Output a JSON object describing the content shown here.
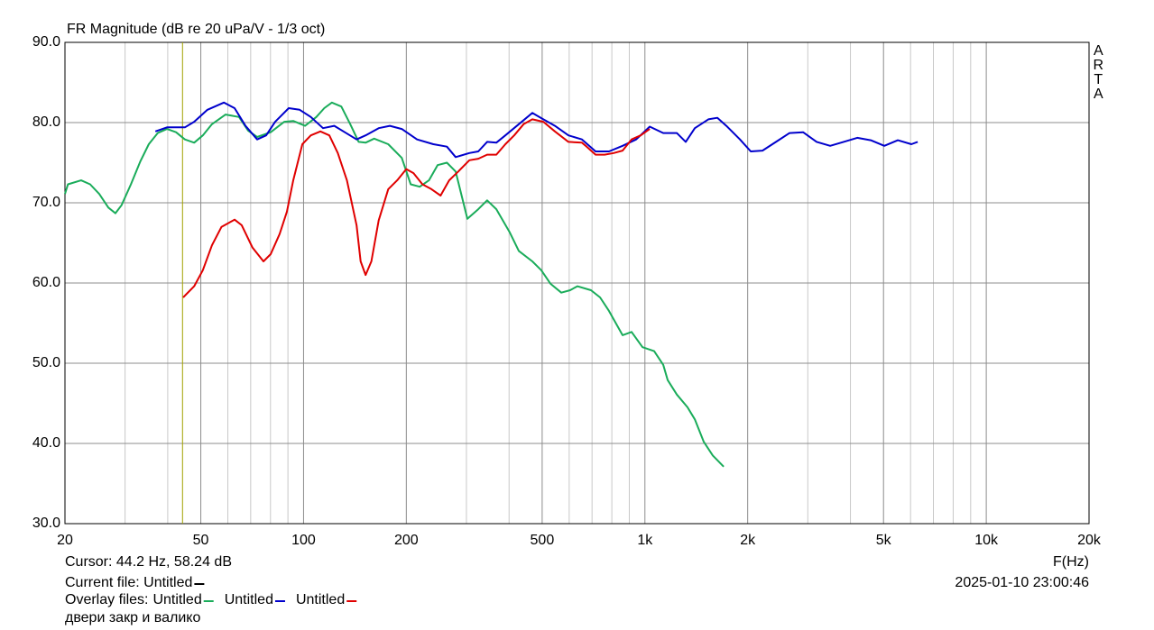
{
  "chart_data": {
    "type": "line",
    "title": "FR Magnitude (dB re 20 uPa/V - 1/3 oct)",
    "watermark": "ARTA",
    "x_label": "F(Hz)",
    "log_x": true,
    "grid": true,
    "xlim": [
      20,
      20000
    ],
    "ylim": [
      30,
      90
    ],
    "xticks": [
      20,
      50,
      100,
      200,
      500,
      {
        "value": 1000,
        "label": "1k"
      },
      {
        "value": 2000,
        "label": "2k"
      },
      {
        "value": 5000,
        "label": "5k"
      },
      {
        "value": 10000,
        "label": "10k"
      },
      {
        "value": 20000,
        "label": "20k"
      }
    ],
    "xminor": [
      30,
      40,
      60,
      70,
      80,
      90,
      300,
      400,
      600,
      700,
      800,
      900,
      3000,
      4000,
      6000,
      7000,
      8000,
      9000
    ],
    "yticks": [
      {
        "value": 30,
        "label": "30.0"
      },
      {
        "value": 40,
        "label": "40.0"
      },
      {
        "value": 50,
        "label": "50.0"
      },
      {
        "value": 60,
        "label": "60.0"
      },
      {
        "value": 70,
        "label": "70.0"
      },
      {
        "value": 80,
        "label": "80.0"
      },
      {
        "value": 90,
        "label": "90.0"
      }
    ],
    "cursor_x": 44.2,
    "cursor_color": "#a0a000",
    "cursor_text": "Cursor: 44.2 Hz, 58.24 dB",
    "current_file": "Current file: Untitled",
    "current_file_color": "#000000",
    "overlay_label": "Overlay files:",
    "date": "2025-01-10  23:00:46",
    "comment": "двери закр  и валико",
    "series": [
      {
        "name": "Untitled",
        "color": "#1aac5a",
        "x": [
          20,
          20.4,
          22.3,
          23.7,
          25.2,
          26.8,
          28.1,
          29.3,
          31.2,
          33.2,
          35.2,
          37.4,
          39.8,
          42.3,
          44.9,
          47.8,
          50.7,
          53.9,
          59.1,
          64.7,
          68.8,
          73.1,
          80.1,
          87.8,
          93.3,
          101,
          109,
          115,
          121,
          129,
          137,
          145,
          152,
          161,
          177,
          194,
          206,
          219,
          233,
          247,
          263,
          279,
          302,
          325,
          345,
          367,
          402,
          427,
          468,
          497,
          529,
          569,
          604,
          634,
          695,
          739,
          785,
          860,
          914,
          984,
          1064,
          1132,
          1166,
          1240,
          1333,
          1400,
          1487,
          1581,
          1701
        ],
        "values": [
          71.1,
          72.3,
          72.8,
          72.3,
          71.1,
          69.4,
          68.7,
          69.7,
          72.3,
          75.1,
          77.3,
          78.7,
          79.2,
          78.8,
          77.9,
          77.5,
          78.4,
          79.8,
          81.0,
          80.7,
          79.0,
          78.2,
          78.8,
          80.1,
          80.2,
          79.6,
          80.7,
          81.8,
          82.5,
          82.0,
          79.8,
          77.6,
          77.5,
          78.0,
          77.3,
          75.6,
          72.3,
          72.0,
          72.8,
          74.7,
          75.0,
          73.9,
          68.0,
          69.2,
          70.3,
          69.2,
          66.3,
          64.0,
          62.7,
          61.6,
          59.9,
          58.8,
          59.1,
          59.6,
          59.1,
          58.2,
          56.5,
          53.5,
          53.9,
          52.0,
          51.5,
          49.8,
          47.9,
          46.1,
          44.5,
          43.0,
          40.2,
          38.5,
          37.1
        ]
      },
      {
        "name": "Untitled",
        "color": "#0000cc",
        "x": [
          36.8,
          39.8,
          44.9,
          47.8,
          52.3,
          58.4,
          62.8,
          67.6,
          73.1,
          77.7,
          82.6,
          90.5,
          97.4,
          105,
          114,
          123,
          132,
          143,
          152,
          166,
          179,
          194,
          215,
          240,
          263,
          279,
          306,
          325,
          345,
          367,
          390,
          427,
          468,
          504,
          545,
          597,
          654,
          717,
          785,
          860,
          943,
          1033,
          1132,
          1240,
          1317,
          1400,
          1534,
          1630,
          1732,
          1898,
          2042,
          2210,
          2421,
          2653,
          2906,
          3184,
          3488,
          3821,
          4187,
          4587,
          5026,
          5507,
          6034,
          6296
        ],
        "values": [
          78.9,
          79.4,
          79.4,
          80.1,
          81.6,
          82.5,
          81.8,
          79.6,
          77.9,
          78.4,
          80.1,
          81.8,
          81.6,
          80.7,
          79.3,
          79.6,
          78.8,
          77.9,
          78.4,
          79.3,
          79.6,
          79.2,
          77.9,
          77.3,
          77.0,
          75.7,
          76.2,
          76.4,
          77.6,
          77.5,
          78.4,
          79.8,
          81.2,
          80.4,
          79.6,
          78.4,
          77.9,
          76.4,
          76.4,
          77.1,
          77.9,
          79.5,
          78.7,
          78.7,
          77.6,
          79.3,
          80.4,
          80.6,
          79.6,
          77.9,
          76.4,
          76.5,
          77.6,
          78.7,
          78.8,
          77.6,
          77.1,
          77.6,
          78.1,
          77.8,
          77.1,
          77.8,
          77.3,
          77.6
        ]
      },
      {
        "name": "Untitled",
        "color": "#e00000",
        "x": [
          44.4,
          47.8,
          50.7,
          53.9,
          57.5,
          62.8,
          65.9,
          70.9,
          76.3,
          80.1,
          85.1,
          89.4,
          93.3,
          99.2,
          105,
          112,
          119,
          126,
          134,
          143,
          147,
          152,
          158,
          166,
          177,
          188,
          200,
          210,
          223,
          237,
          252,
          267,
          284,
          306,
          325,
          345,
          367,
          390,
          414,
          441,
          468,
          504,
          545,
          597,
          654,
          675,
          717,
          762,
          810,
          860,
          914,
          972,
          1033
        ],
        "values": [
          58.2,
          59.6,
          61.6,
          64.7,
          67.0,
          67.9,
          67.2,
          64.4,
          62.7,
          63.6,
          66.1,
          68.9,
          72.8,
          77.3,
          78.4,
          78.9,
          78.4,
          76.2,
          72.8,
          67.2,
          62.7,
          61.0,
          62.7,
          67.8,
          71.7,
          72.8,
          74.2,
          73.7,
          72.3,
          71.7,
          70.9,
          72.8,
          73.9,
          75.3,
          75.5,
          76.0,
          76.0,
          77.3,
          78.4,
          79.8,
          80.4,
          80.1,
          78.9,
          77.6,
          77.5,
          77.0,
          76.0,
          76.0,
          76.2,
          76.5,
          77.9,
          78.4,
          79.2
        ]
      }
    ]
  }
}
